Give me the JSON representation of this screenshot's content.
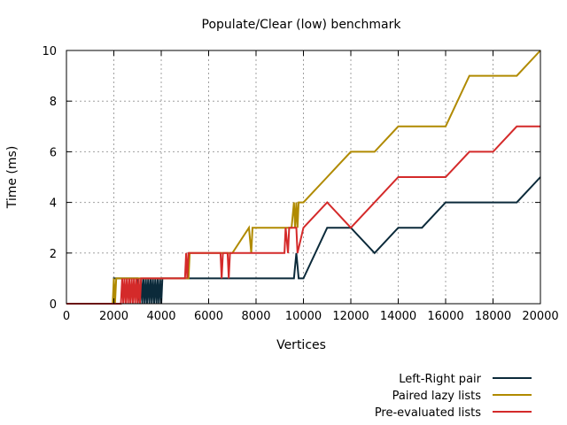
{
  "chart_data": {
    "type": "line",
    "title": "Populate/Clear (low) benchmark",
    "xlabel": "Vertices",
    "ylabel": "Time (ms)",
    "xlim": [
      0,
      20000
    ],
    "ylim": [
      0,
      10
    ],
    "xticks": [
      0,
      2000,
      4000,
      6000,
      8000,
      10000,
      12000,
      14000,
      16000,
      18000,
      20000
    ],
    "yticks": [
      0,
      2,
      4,
      6,
      8,
      10
    ],
    "grid": true,
    "legend_position": "bottom-right",
    "series": [
      {
        "name": "Left-Right pair",
        "color": "#0b2a3a",
        "x": [
          0,
          2000,
          2000,
          3000,
          3100,
          3150,
          3200,
          3250,
          3300,
          3350,
          3400,
          3450,
          3500,
          3550,
          3600,
          3650,
          3700,
          3750,
          3800,
          3850,
          3900,
          3950,
          4000,
          4050,
          4100,
          5000,
          6000,
          7000,
          8000,
          9000,
          9600,
          9700,
          9800,
          10000,
          11000,
          12000,
          13000,
          14000,
          15000,
          16000,
          17000,
          18000,
          19000,
          20000
        ],
        "y": [
          0,
          0,
          1,
          1,
          0,
          1,
          0,
          1,
          0,
          1,
          0,
          1,
          0,
          1,
          0,
          1,
          0,
          1,
          0,
          1,
          0,
          1,
          0,
          1,
          1,
          1,
          1,
          1,
          1,
          1,
          1,
          2,
          1,
          1,
          3,
          3,
          2,
          3,
          3,
          4,
          4,
          4,
          4,
          5
        ]
      },
      {
        "name": "Paired lazy lists",
        "color": "#b08a00",
        "x": [
          0,
          1950,
          2000,
          2050,
          2100,
          5000,
          5150,
          5200,
          5300,
          7000,
          7700,
          7800,
          7850,
          7900,
          9000,
          9500,
          9600,
          9650,
          9700,
          9750,
          9800,
          10000,
          11000,
          12000,
          13000,
          14000,
          15000,
          16000,
          17000,
          18000,
          19000,
          20000
        ],
        "y": [
          0,
          0,
          1,
          0,
          1,
          1,
          1,
          2,
          2,
          2,
          3,
          2,
          3,
          3,
          3,
          3,
          4,
          3,
          4,
          3,
          4,
          4,
          5,
          6,
          6,
          7,
          7,
          7,
          9,
          9,
          9,
          10
        ]
      },
      {
        "name": "Pre-evaluated lists",
        "color": "#d42a2a",
        "x": [
          0,
          2000,
          2300,
          2350,
          2400,
          2450,
          2500,
          2550,
          2600,
          2650,
          2700,
          2750,
          2800,
          2850,
          2900,
          2950,
          3000,
          3050,
          3100,
          3150,
          3200,
          5000,
          5050,
          5100,
          5150,
          5200,
          6500,
          6550,
          6600,
          6800,
          6850,
          6900,
          6950,
          9200,
          9250,
          9350,
          9400,
          9700,
          9750,
          10000,
          11000,
          12000,
          13000,
          14000,
          15000,
          16000,
          17000,
          18000,
          19000,
          20000
        ],
        "y": [
          0,
          0,
          0,
          1,
          0,
          1,
          0,
          1,
          0,
          1,
          0,
          1,
          0,
          1,
          0,
          1,
          0,
          1,
          0,
          1,
          1,
          1,
          2,
          1,
          2,
          2,
          2,
          1,
          2,
          2,
          1,
          2,
          2,
          2,
          3,
          2,
          3,
          3,
          2,
          3,
          4,
          3,
          4,
          5,
          5,
          5,
          6,
          6,
          7,
          7
        ]
      }
    ]
  }
}
